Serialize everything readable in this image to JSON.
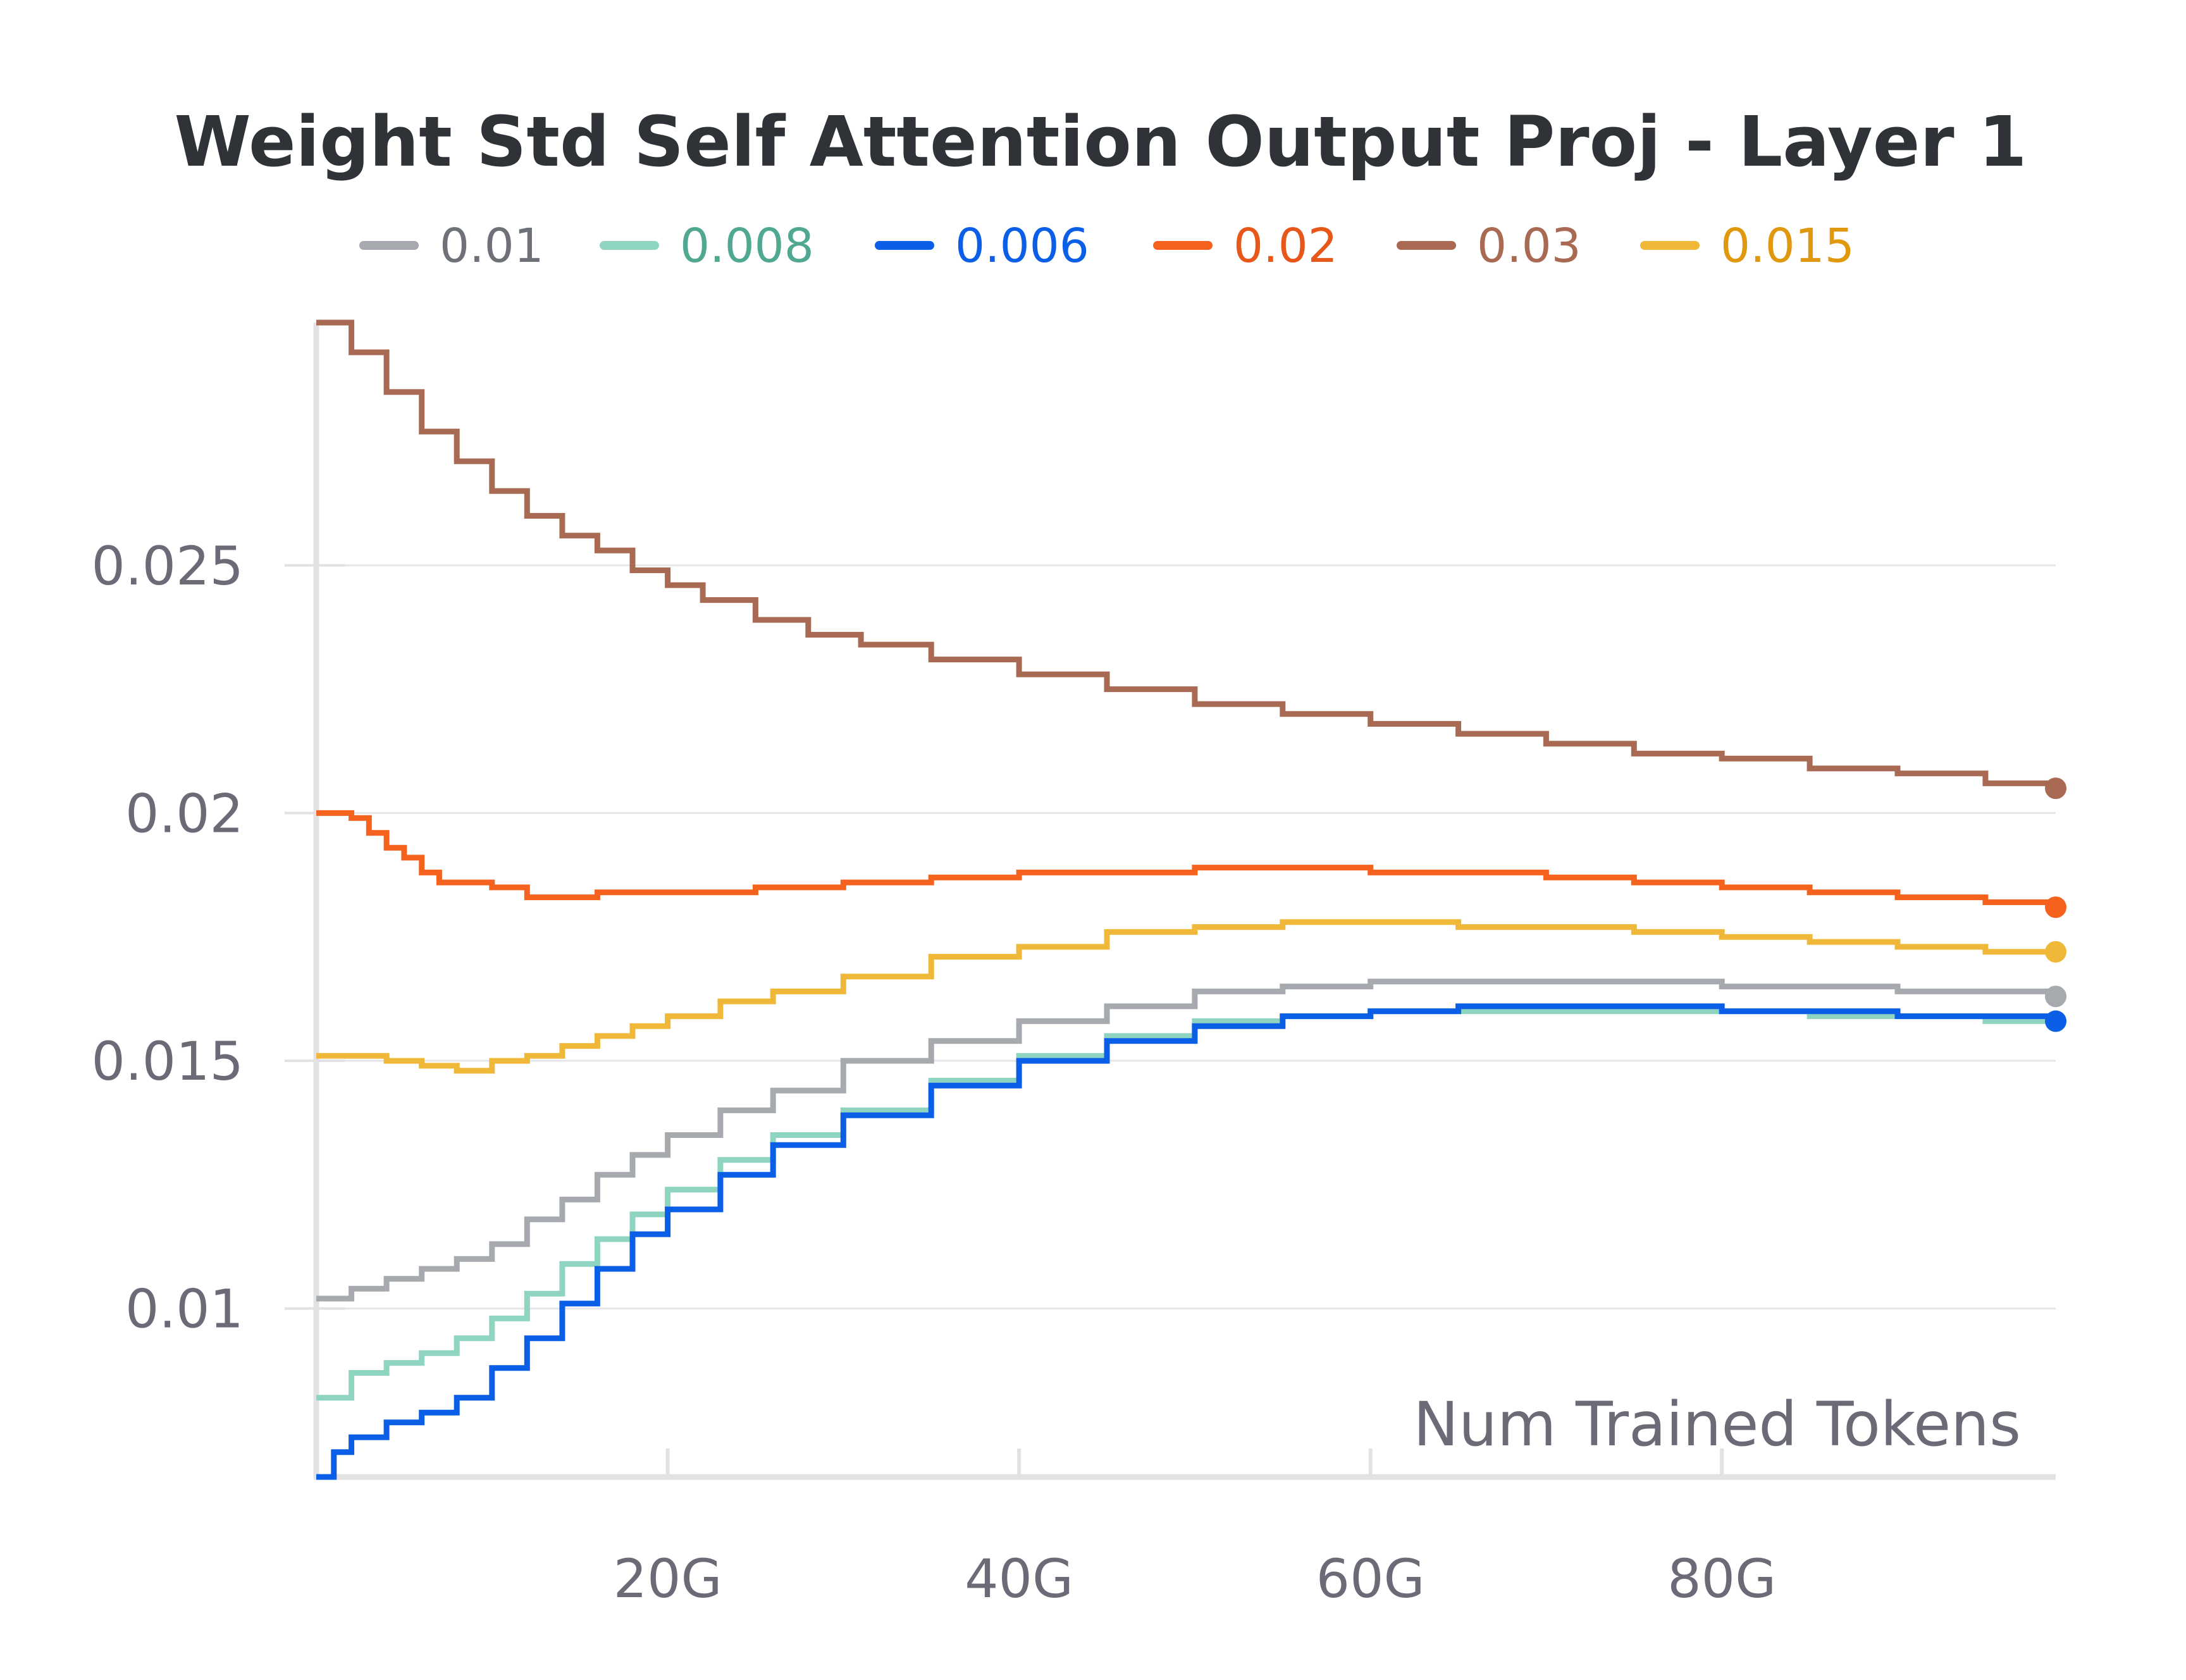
{
  "chart_data": {
    "type": "line",
    "title": "Weight Std Self Attention Output Proj - Layer 1",
    "xlabel": "Num Trained Tokens",
    "ylabel": "",
    "x_unit": "G",
    "xlim": [
      0,
      99
    ],
    "ylim": [
      0.0066,
      0.0299
    ],
    "x_ticks": [
      {
        "value": 20,
        "label": "20G"
      },
      {
        "value": 40,
        "label": "40G"
      },
      {
        "value": 60,
        "label": "60G"
      },
      {
        "value": 80,
        "label": "80G"
      }
    ],
    "y_ticks": [
      {
        "value": 0.01,
        "label": "0.01"
      },
      {
        "value": 0.015,
        "label": "0.015"
      },
      {
        "value": 0.02,
        "label": "0.02"
      },
      {
        "value": 0.025,
        "label": "0.025"
      }
    ],
    "grid": true,
    "legend_position": "top",
    "series": [
      {
        "name": "0.01",
        "color": "#a6a9ad",
        "text_color": "#6e7178",
        "x": [
          0,
          2,
          4,
          6,
          8,
          10,
          12,
          14,
          16,
          18,
          20,
          23,
          26,
          30,
          35,
          40,
          45,
          50,
          55,
          60,
          65,
          70,
          75,
          80,
          85,
          90,
          95,
          99
        ],
        "y": [
          0.0102,
          0.0104,
          0.0106,
          0.0108,
          0.011,
          0.0113,
          0.0118,
          0.0122,
          0.0127,
          0.0131,
          0.0135,
          0.014,
          0.0144,
          0.015,
          0.0154,
          0.0158,
          0.0161,
          0.0164,
          0.0165,
          0.0166,
          0.0166,
          0.0166,
          0.0166,
          0.0165,
          0.0165,
          0.0164,
          0.0164,
          0.0163
        ]
      },
      {
        "name": "0.008",
        "color": "#8fd4c1",
        "text_color": "#4fa88f",
        "x": [
          0,
          2,
          4,
          6,
          8,
          10,
          12,
          14,
          16,
          18,
          20,
          23,
          26,
          30,
          35,
          40,
          45,
          50,
          55,
          60,
          65,
          70,
          75,
          80,
          85,
          90,
          95,
          99
        ],
        "y": [
          0.0082,
          0.0087,
          0.0089,
          0.0091,
          0.0094,
          0.0098,
          0.0103,
          0.0109,
          0.0114,
          0.0119,
          0.0124,
          0.013,
          0.0135,
          0.014,
          0.0146,
          0.0151,
          0.0155,
          0.0158,
          0.0159,
          0.016,
          0.016,
          0.016,
          0.016,
          0.016,
          0.0159,
          0.0159,
          0.0158,
          0.0158
        ]
      },
      {
        "name": "0.006",
        "color": "#0b5fe6",
        "text_color": "#0b5fe6",
        "x": [
          0,
          1,
          2,
          4,
          6,
          8,
          10,
          12,
          14,
          16,
          18,
          20,
          23,
          26,
          30,
          35,
          40,
          45,
          50,
          55,
          60,
          65,
          70,
          75,
          80,
          85,
          90,
          95,
          99
        ],
        "y": [
          0.0066,
          0.0071,
          0.0074,
          0.0077,
          0.0079,
          0.0082,
          0.0088,
          0.0094,
          0.0101,
          0.0108,
          0.0115,
          0.012,
          0.0127,
          0.0133,
          0.0139,
          0.0145,
          0.015,
          0.0154,
          0.0157,
          0.0159,
          0.016,
          0.0161,
          0.0161,
          0.0161,
          0.016,
          0.016,
          0.0159,
          0.0159,
          0.0158
        ]
      },
      {
        "name": "0.02",
        "color": "#f4621d",
        "text_color": "#e8571a",
        "x": [
          0,
          1,
          2,
          3,
          4,
          5,
          6,
          7,
          8,
          10,
          12,
          14,
          16,
          18,
          20,
          25,
          30,
          35,
          40,
          45,
          50,
          55,
          60,
          65,
          70,
          75,
          80,
          85,
          90,
          95,
          99
        ],
        "y": [
          0.02,
          0.02,
          0.0199,
          0.0196,
          0.0193,
          0.0191,
          0.0188,
          0.0186,
          0.0186,
          0.0185,
          0.0183,
          0.0183,
          0.0184,
          0.0184,
          0.0184,
          0.0185,
          0.0186,
          0.0187,
          0.0188,
          0.0188,
          0.0189,
          0.0189,
          0.0188,
          0.0188,
          0.0187,
          0.0186,
          0.0185,
          0.0184,
          0.0183,
          0.0182,
          0.0181
        ]
      },
      {
        "name": "0.03",
        "color": "#a86a52",
        "text_color": "#a86a52",
        "x": [
          0,
          2,
          4,
          6,
          8,
          10,
          12,
          14,
          16,
          18,
          20,
          22,
          25,
          28,
          31,
          35,
          40,
          45,
          50,
          55,
          60,
          65,
          70,
          75,
          80,
          85,
          90,
          95,
          99
        ],
        "y": [
          0.0299,
          0.0293,
          0.0285,
          0.0277,
          0.0271,
          0.0265,
          0.026,
          0.0256,
          0.0253,
          0.0249,
          0.0246,
          0.0243,
          0.0239,
          0.0236,
          0.0234,
          0.0231,
          0.0228,
          0.0225,
          0.0222,
          0.022,
          0.0218,
          0.0216,
          0.0214,
          0.0212,
          0.0211,
          0.0209,
          0.0208,
          0.0206,
          0.0205
        ]
      },
      {
        "name": "0.015",
        "color": "#efb838",
        "text_color": "#e0980f",
        "x": [
          0,
          2,
          4,
          6,
          8,
          10,
          12,
          14,
          16,
          18,
          20,
          23,
          26,
          30,
          35,
          40,
          45,
          50,
          55,
          60,
          65,
          70,
          75,
          80,
          85,
          90,
          95,
          99
        ],
        "y": [
          0.0151,
          0.0151,
          0.015,
          0.0149,
          0.0148,
          0.015,
          0.0151,
          0.0153,
          0.0155,
          0.0157,
          0.0159,
          0.0162,
          0.0164,
          0.0167,
          0.0171,
          0.0173,
          0.0176,
          0.0177,
          0.0178,
          0.0178,
          0.0177,
          0.0177,
          0.0176,
          0.0175,
          0.0174,
          0.0173,
          0.0172,
          0.0172
        ]
      }
    ]
  }
}
